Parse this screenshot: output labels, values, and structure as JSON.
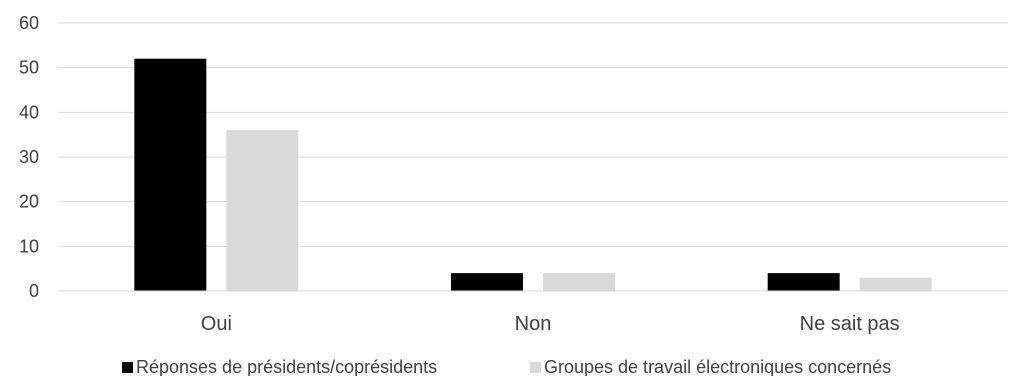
{
  "chart_data": {
    "type": "bar",
    "title": "",
    "xlabel": "",
    "ylabel": "",
    "categories": [
      "Oui",
      "Non",
      "Ne sait pas"
    ],
    "series": [
      {
        "name": "Réponses de présidents/coprésidents",
        "values": [
          52,
          4,
          4
        ],
        "color": "#000000"
      },
      {
        "name": "Groupes de travail électroniques concernés",
        "values": [
          36,
          4,
          3
        ],
        "color": "#d9d9d9"
      }
    ],
    "ylim": [
      0,
      60
    ],
    "yticks": [
      0,
      10,
      20,
      30,
      40,
      50,
      60
    ],
    "grid": true,
    "legend_position": "bottom"
  }
}
